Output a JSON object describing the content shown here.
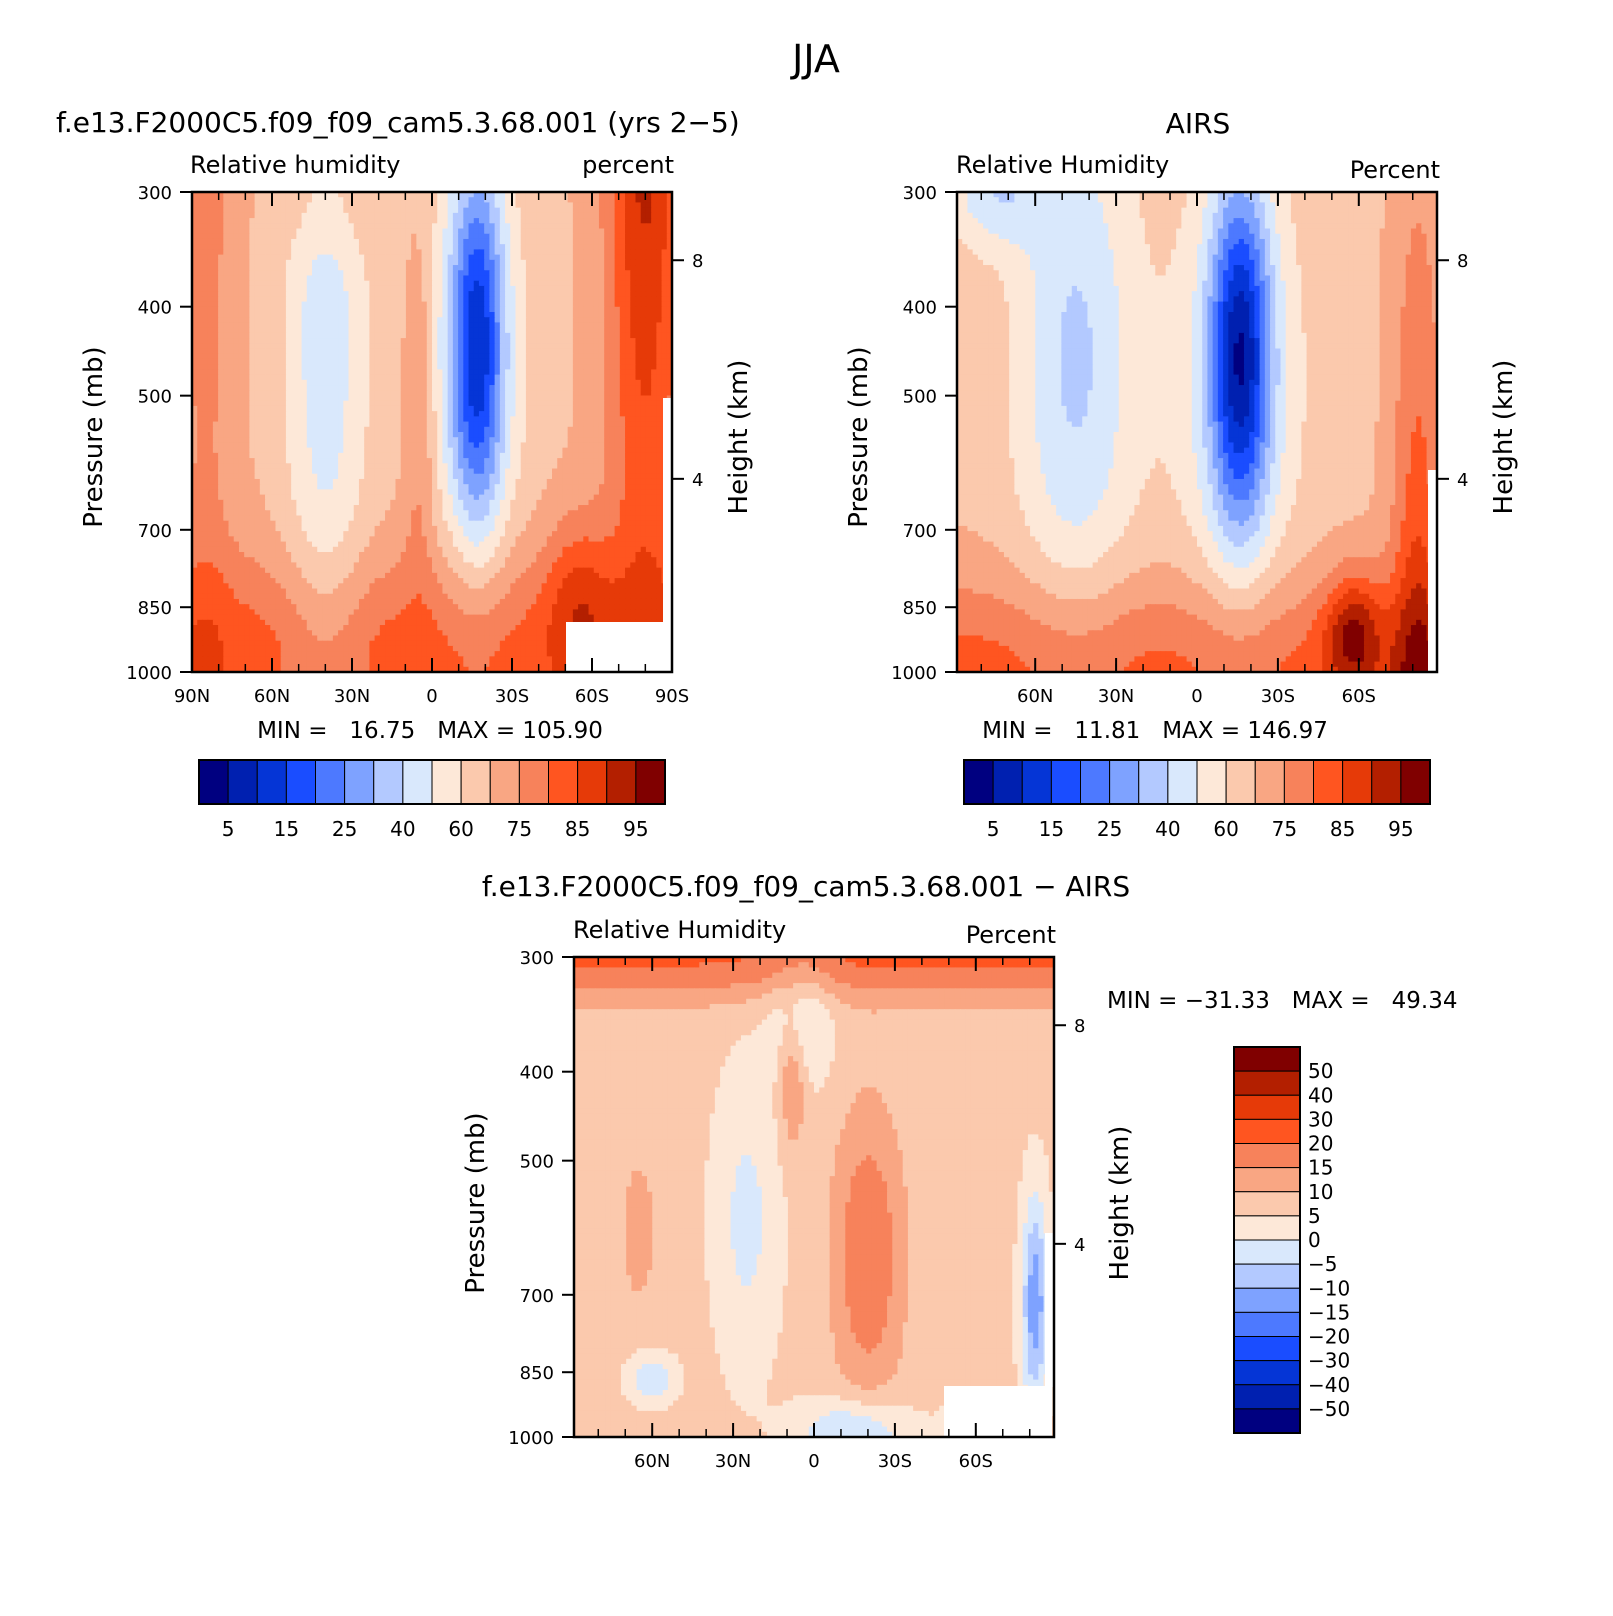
{
  "figure": {
    "title": "JJA"
  },
  "palettes": {
    "rh": [
      "#000080",
      "#0020b0",
      "#0535d6",
      "#1a4dff",
      "#4d79ff",
      "#7ea2ff",
      "#b3c9ff",
      "#d9e8fc",
      "#fde8d8",
      "#fbc9ad",
      "#f9a683",
      "#f7825b",
      "#ff5520",
      "#e63a08",
      "#b31f00",
      "#800000"
    ],
    "diff": [
      "#000080",
      "#0020b0",
      "#0535d6",
      "#1a4dff",
      "#4d79ff",
      "#7ea2ff",
      "#b3c9ff",
      "#d9e8fc",
      "#fde8d8",
      "#fbc9ad",
      "#f9a683",
      "#f7825b",
      "#ff5520",
      "#e63a08",
      "#b31f00",
      "#800000"
    ]
  },
  "chart_data": [
    {
      "type": "heatmap",
      "title": "f.e13.F2000C5.f09_f09_cam5.3.68.001 (yrs 2−5)",
      "subtitle_left": "Relative humidity",
      "subtitle_right": "percent",
      "xlabel": "",
      "ylabel": "Pressure (mb)",
      "ylabel_right": "Height (km)",
      "x_ticklabels": [
        "90N",
        "60N",
        "30N",
        "0",
        "30S",
        "60S",
        "90S"
      ],
      "y_ticklabels": [
        "300",
        "400",
        "500",
        "700",
        "850",
        "1000"
      ],
      "y_right_ticklabels": [
        "8",
        "4"
      ],
      "stats": "MIN =   16.75   MAX = 105.90",
      "min": 16.75,
      "max": 105.9,
      "ylim": [
        1000,
        300
      ],
      "xlim": [
        90,
        -90
      ],
      "colorbar_labels": [
        "5",
        "15",
        "25",
        "40",
        "60",
        "75",
        "85",
        "95"
      ],
      "colorbar_levels": [
        5,
        10,
        15,
        20,
        25,
        30,
        40,
        50,
        60,
        65,
        75,
        80,
        85,
        90,
        95
      ]
    },
    {
      "type": "heatmap",
      "title": "AIRS",
      "subtitle_left": "Relative Humidity",
      "subtitle_right": "Percent",
      "xlabel": "",
      "ylabel": "Pressure (mb)",
      "ylabel_right": "Height (km)",
      "x_ticklabels": [
        "60N",
        "30N",
        "0",
        "30S",
        "60S"
      ],
      "y_ticklabels": [
        "300",
        "400",
        "500",
        "700",
        "850",
        "1000"
      ],
      "y_right_ticklabels": [
        "8",
        "4"
      ],
      "stats": "MIN =   11.81   MAX = 146.97",
      "min": 11.81,
      "max": 146.97,
      "ylim": [
        1000,
        300
      ],
      "colorbar_labels": [
        "5",
        "15",
        "25",
        "40",
        "60",
        "75",
        "85",
        "95"
      ],
      "colorbar_levels": [
        5,
        10,
        15,
        20,
        25,
        30,
        40,
        50,
        60,
        65,
        75,
        80,
        85,
        90,
        95
      ]
    },
    {
      "type": "heatmap",
      "title": "f.e13.F2000C5.f09_f09_cam5.3.68.001 − AIRS",
      "subtitle_left": "Relative Humidity",
      "subtitle_right": "Percent",
      "xlabel": "",
      "ylabel": "Pressure (mb)",
      "ylabel_right": "Height (km)",
      "x_ticklabels": [
        "60N",
        "30N",
        "0",
        "30S",
        "60S"
      ],
      "y_ticklabels": [
        "300",
        "400",
        "500",
        "700",
        "850",
        "1000"
      ],
      "y_right_ticklabels": [
        "8",
        "4"
      ],
      "stats": "MIN = −31.33   MAX =   49.34",
      "min": -31.33,
      "max": 49.34,
      "ylim": [
        1000,
        300
      ],
      "colorbar_labels": [
        "50",
        "40",
        "30",
        "20",
        "15",
        "10",
        "5",
        "0",
        "−5",
        "−10",
        "−15",
        "−20",
        "−30",
        "−40",
        "−50"
      ],
      "colorbar_levels": [
        -50,
        -40,
        -30,
        -20,
        -15,
        -10,
        -5,
        0,
        5,
        10,
        15,
        20,
        30,
        40,
        50
      ]
    }
  ]
}
